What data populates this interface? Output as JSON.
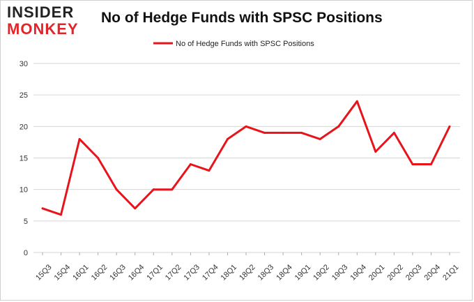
{
  "logo": {
    "line1": "INSIDER",
    "line2": "MONKEY"
  },
  "chart_data": {
    "type": "line",
    "title": "No of Hedge Funds with SPSC Positions",
    "categories": [
      "15Q3",
      "15Q4",
      "16Q1",
      "16Q2",
      "16Q3",
      "16Q4",
      "17Q1",
      "17Q2",
      "17Q3",
      "17Q4",
      "18Q1",
      "18Q2",
      "18Q3",
      "18Q4",
      "19Q1",
      "19Q2",
      "19Q3",
      "19Q4",
      "20Q1",
      "20Q2",
      "20Q3",
      "20Q4",
      "21Q1"
    ],
    "series": [
      {
        "name": "No of Hedge Funds with SPSC Positions",
        "values": [
          7,
          6,
          18,
          15,
          10,
          7,
          10,
          10,
          14,
          13,
          18,
          20,
          19,
          19,
          19,
          18,
          20,
          24,
          16,
          19,
          14,
          14,
          20
        ]
      }
    ],
    "ylim": [
      0,
      30
    ],
    "yticks": [
      0,
      5,
      10,
      15,
      20,
      25,
      30
    ],
    "grid": "horizontal",
    "legend": "top-center",
    "line_color": "#e8141b"
  }
}
